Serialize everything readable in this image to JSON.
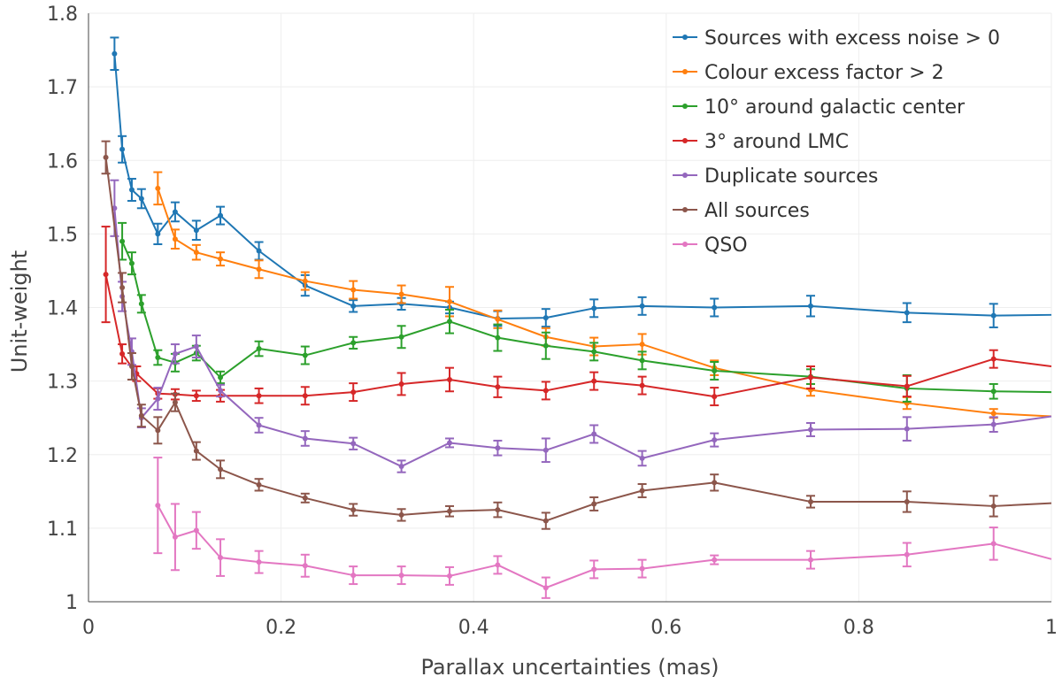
{
  "chart_data": {
    "type": "line",
    "xlabel": "Parallax uncertainties (mas)",
    "ylabel": "Unit-weight",
    "xlim": [
      0,
      1
    ],
    "ylim": [
      1,
      1.8
    ],
    "xticks": [
      0,
      0.2,
      0.4,
      0.6,
      0.8,
      1
    ],
    "xtick_labels": [
      "0",
      "0.2",
      "0.4",
      "0.6",
      "0.8",
      "1"
    ],
    "yticks": [
      1,
      1.1,
      1.2,
      1.3,
      1.4,
      1.5,
      1.6,
      1.7,
      1.8
    ],
    "ytick_labels": [
      "1",
      "1.1",
      "1.2",
      "1.3",
      "1.4",
      "1.5",
      "1.6",
      "1.7",
      "1.8"
    ],
    "grid": true,
    "legend_position": "top-right",
    "series": [
      {
        "name": "Sources with excess noise > 0",
        "color": "#1f77b4",
        "x": [
          0.027,
          0.035,
          0.045,
          0.055,
          0.072,
          0.09,
          0.112,
          0.137,
          0.177,
          0.225,
          0.275,
          0.325,
          0.375,
          0.425,
          0.475,
          0.525,
          0.575,
          0.65,
          0.75,
          0.85,
          0.94,
          1.0
        ],
        "y": [
          1.745,
          1.615,
          1.56,
          1.548,
          1.5,
          1.53,
          1.505,
          1.525,
          1.477,
          1.43,
          1.402,
          1.405,
          1.4,
          1.385,
          1.386,
          1.399,
          1.402,
          1.4,
          1.402,
          1.393,
          1.389,
          1.39
        ],
        "err": [
          0.022,
          0.018,
          0.015,
          0.013,
          0.014,
          0.013,
          0.013,
          0.012,
          0.012,
          0.014,
          0.008,
          0.008,
          0.008,
          0.01,
          0.012,
          0.012,
          0.012,
          0.012,
          0.014,
          0.013,
          0.016,
          null
        ]
      },
      {
        "name": "Colour excess factor > 2",
        "color": "#ff7f0e",
        "x": [
          0.072,
          0.09,
          0.112,
          0.137,
          0.177,
          0.225,
          0.275,
          0.325,
          0.375,
          0.425,
          0.475,
          0.525,
          0.575,
          0.65,
          0.75,
          0.85,
          0.94,
          1.0
        ],
        "y": [
          1.562,
          1.493,
          1.475,
          1.466,
          1.452,
          1.436,
          1.424,
          1.418,
          1.408,
          1.384,
          1.36,
          1.347,
          1.35,
          1.318,
          1.288,
          1.27,
          1.256,
          1.252
        ],
        "err": [
          0.022,
          0.013,
          0.01,
          0.009,
          0.012,
          0.012,
          0.012,
          0.012,
          0.02,
          0.012,
          0.012,
          0.012,
          0.014,
          0.01,
          0.008,
          0.008,
          0.006,
          null
        ]
      },
      {
        "name": "10° around galactic center",
        "color": "#2ca02c",
        "x": [
          0.035,
          0.045,
          0.055,
          0.072,
          0.09,
          0.112,
          0.137,
          0.177,
          0.225,
          0.275,
          0.325,
          0.375,
          0.425,
          0.475,
          0.525,
          0.575,
          0.65,
          0.75,
          0.85,
          0.94,
          1.0
        ],
        "y": [
          1.49,
          1.46,
          1.405,
          1.332,
          1.325,
          1.338,
          1.305,
          1.344,
          1.335,
          1.352,
          1.36,
          1.381,
          1.359,
          1.348,
          1.34,
          1.328,
          1.314,
          1.306,
          1.29,
          1.286,
          1.285
        ],
        "err": [
          0.025,
          0.015,
          0.012,
          0.01,
          0.012,
          0.01,
          0.008,
          0.01,
          0.012,
          0.008,
          0.015,
          0.016,
          0.018,
          0.018,
          0.012,
          0.012,
          0.012,
          0.01,
          0.018,
          0.01,
          null
        ]
      },
      {
        "name": "3° around LMC",
        "color": "#d62728",
        "x": [
          0.018,
          0.035,
          0.05,
          0.072,
          0.09,
          0.112,
          0.137,
          0.177,
          0.225,
          0.275,
          0.325,
          0.375,
          0.425,
          0.475,
          0.525,
          0.575,
          0.65,
          0.75,
          0.85,
          0.94,
          1.0
        ],
        "y": [
          1.445,
          1.337,
          1.31,
          1.283,
          1.282,
          1.28,
          1.28,
          1.28,
          1.28,
          1.285,
          1.296,
          1.302,
          1.292,
          1.287,
          1.3,
          1.294,
          1.279,
          1.305,
          1.293,
          1.33,
          1.32
        ],
        "err": [
          0.065,
          0.013,
          0.01,
          0.007,
          0.007,
          0.007,
          0.008,
          0.01,
          0.012,
          0.012,
          0.015,
          0.016,
          0.014,
          0.012,
          0.012,
          0.012,
          0.012,
          0.015,
          0.014,
          0.012,
          null
        ]
      },
      {
        "name": "Duplicate sources",
        "color": "#9467bd",
        "x": [
          0.027,
          0.035,
          0.045,
          0.055,
          0.072,
          0.09,
          0.112,
          0.137,
          0.177,
          0.225,
          0.275,
          0.325,
          0.375,
          0.425,
          0.475,
          0.525,
          0.575,
          0.65,
          0.75,
          0.85,
          0.94,
          1.0
        ],
        "y": [
          1.535,
          1.415,
          1.34,
          1.25,
          1.276,
          1.337,
          1.347,
          1.287,
          1.24,
          1.222,
          1.215,
          1.184,
          1.216,
          1.209,
          1.206,
          1.228,
          1.195,
          1.22,
          1.234,
          1.235,
          1.241,
          1.252
        ],
        "err": [
          0.038,
          0.02,
          0.018,
          0.013,
          0.015,
          0.013,
          0.015,
          0.008,
          0.01,
          0.01,
          0.008,
          0.008,
          0.006,
          0.01,
          0.016,
          0.012,
          0.01,
          0.009,
          0.009,
          0.016,
          0.01,
          null
        ]
      },
      {
        "name": "All sources",
        "color": "#8c564b",
        "x": [
          0.018,
          0.035,
          0.045,
          0.055,
          0.072,
          0.09,
          0.112,
          0.137,
          0.177,
          0.225,
          0.275,
          0.325,
          0.375,
          0.425,
          0.475,
          0.525,
          0.575,
          0.65,
          0.75,
          0.85,
          0.94,
          1.0
        ],
        "y": [
          1.604,
          1.427,
          1.32,
          1.253,
          1.233,
          1.271,
          1.205,
          1.18,
          1.159,
          1.141,
          1.125,
          1.118,
          1.123,
          1.125,
          1.11,
          1.133,
          1.151,
          1.162,
          1.136,
          1.136,
          1.13,
          1.134
        ],
        "err": [
          0.022,
          0.02,
          0.018,
          0.015,
          0.018,
          0.012,
          0.012,
          0.012,
          0.008,
          0.006,
          0.008,
          0.008,
          0.007,
          0.01,
          0.011,
          0.009,
          0.009,
          0.011,
          0.008,
          0.014,
          0.014,
          null
        ]
      },
      {
        "name": "QSO",
        "color": "#e377c2",
        "x": [
          0.072,
          0.09,
          0.112,
          0.137,
          0.177,
          0.225,
          0.275,
          0.325,
          0.375,
          0.425,
          0.475,
          0.525,
          0.575,
          0.65,
          0.75,
          0.85,
          0.94,
          1.0
        ],
        "y": [
          1.131,
          1.088,
          1.097,
          1.06,
          1.054,
          1.049,
          1.036,
          1.036,
          1.035,
          1.05,
          1.019,
          1.044,
          1.045,
          1.057,
          1.057,
          1.064,
          1.079,
          1.058
        ],
        "err": [
          0.065,
          0.045,
          0.025,
          0.025,
          0.015,
          0.015,
          0.012,
          0.012,
          0.012,
          0.012,
          0.014,
          0.012,
          0.012,
          0.006,
          0.012,
          0.016,
          0.022,
          null
        ]
      }
    ]
  }
}
